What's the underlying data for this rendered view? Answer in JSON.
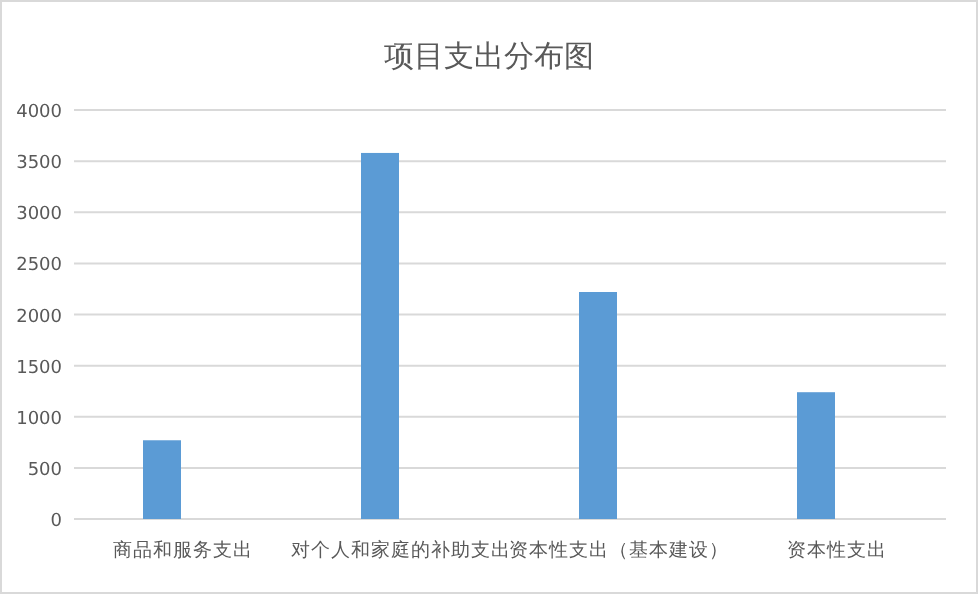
{
  "chart_data": {
    "type": "bar",
    "title": "项目支出分布图",
    "categories": [
      "商品和服务支出",
      "对个人和家庭的补助支出",
      "资本性支出（基本建设）",
      "资本性支出"
    ],
    "values": [
      770,
      3580,
      2220,
      1240
    ],
    "color": "#5b9bd5",
    "ylim": [
      0,
      4000
    ],
    "yticks": [
      0,
      500,
      1000,
      1500,
      2000,
      2500,
      3000,
      3500,
      4000
    ],
    "grid": "y"
  }
}
